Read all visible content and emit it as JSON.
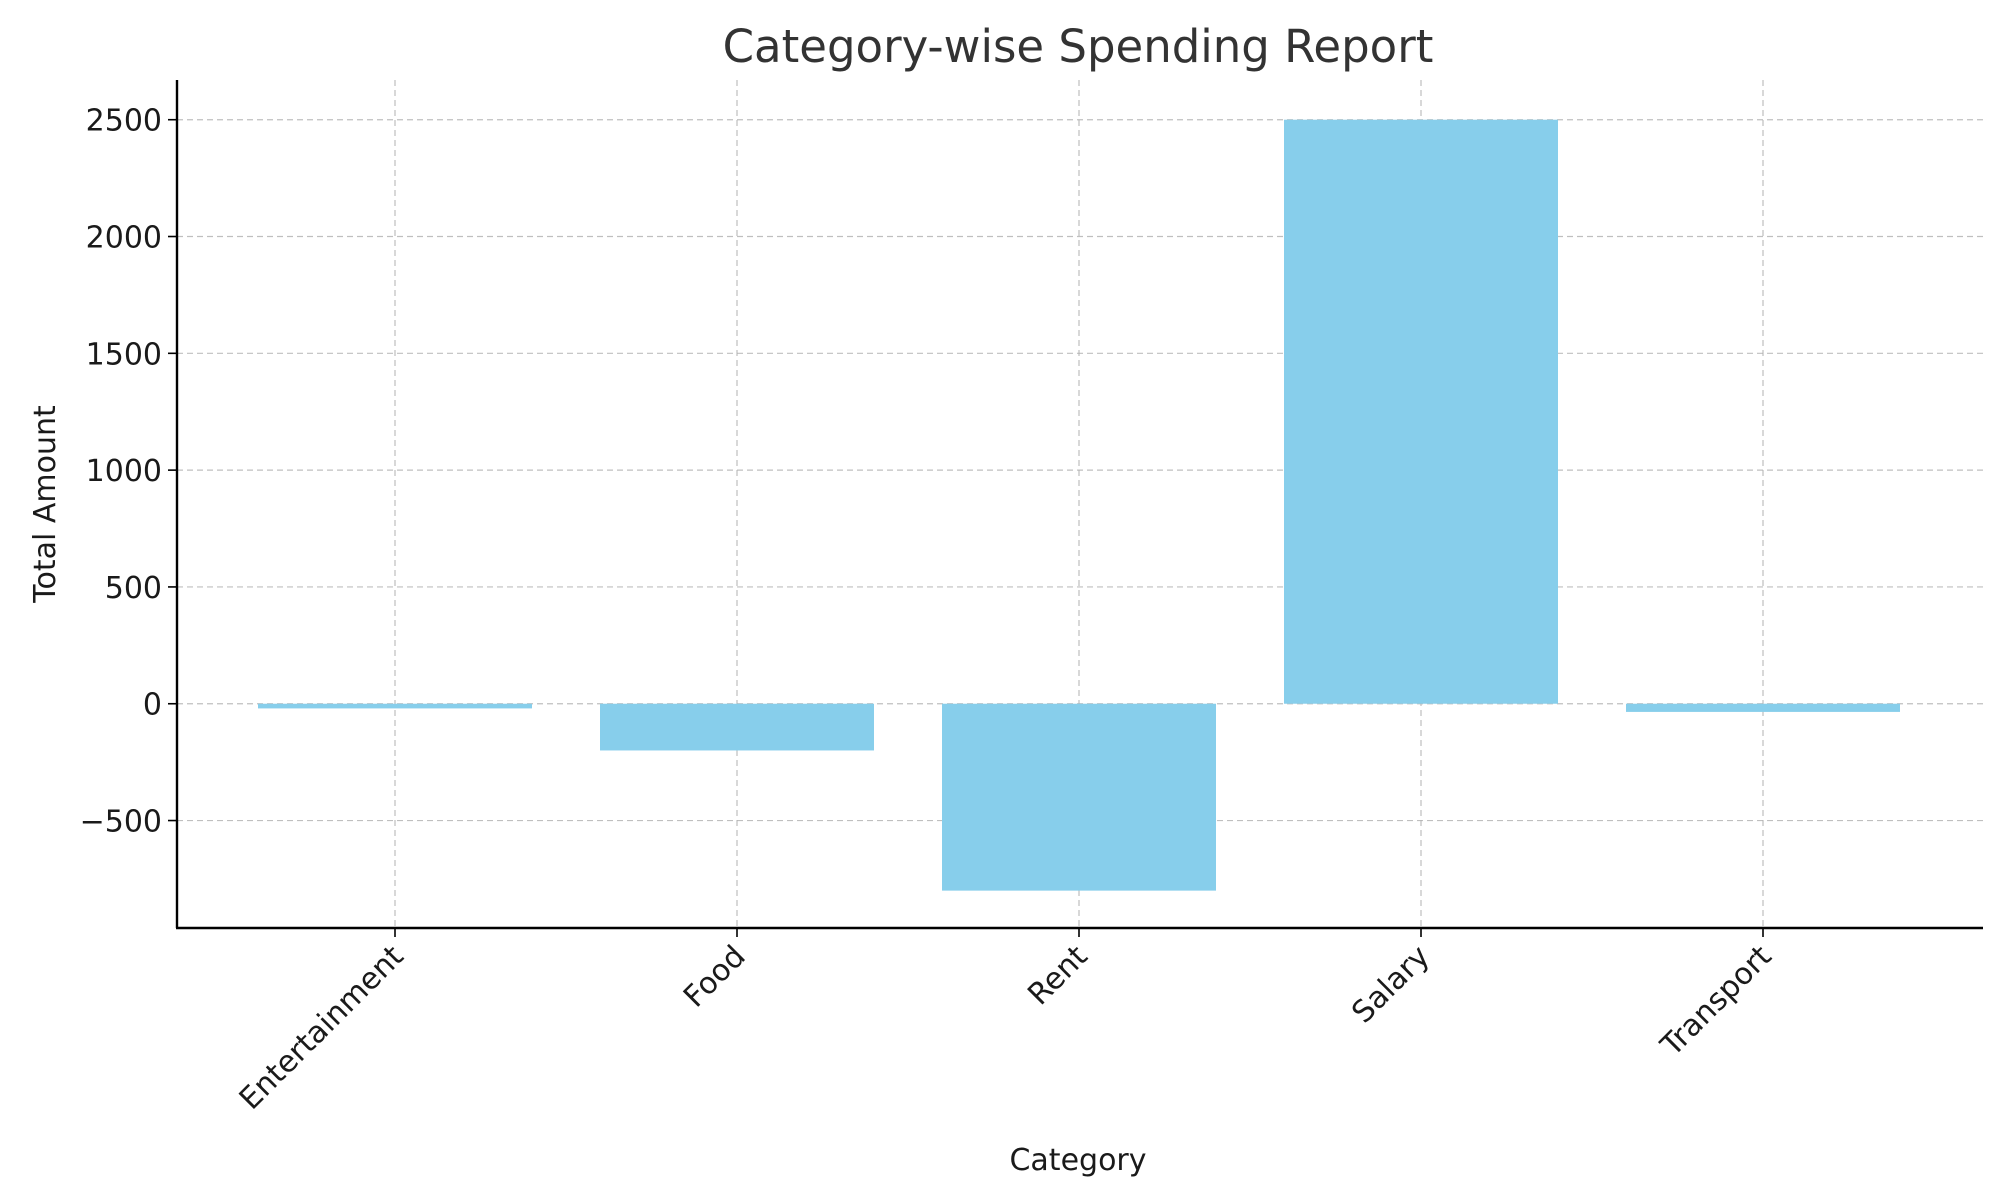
{
  "chart_data": {
    "type": "bar",
    "title": "Category-wise Spending Report",
    "xlabel": "Category",
    "ylabel": "Total Amount",
    "categories": [
      "Entertainment",
      "Food",
      "Rent",
      "Salary",
      "Transport"
    ],
    "values": [
      -20,
      -200,
      -800,
      2500,
      -35
    ],
    "ylim": [
      -960,
      2670
    ],
    "yticks": [
      -500,
      0,
      500,
      1000,
      1500,
      2000,
      2500
    ],
    "ytick_labels": [
      "−500",
      "0",
      "500",
      "1000",
      "1500",
      "2000",
      "2500"
    ],
    "bar_color": "#87ceeb",
    "grid": true,
    "legend": false
  }
}
